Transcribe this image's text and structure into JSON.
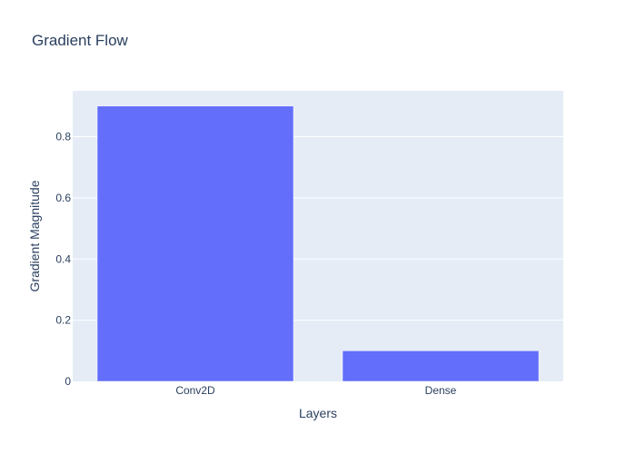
{
  "chart_data": {
    "type": "bar",
    "title": "Gradient Flow",
    "xlabel": "Layers",
    "ylabel": "Gradient Magnitude",
    "categories": [
      "Conv2D",
      "Dense"
    ],
    "values": [
      0.9,
      0.1
    ],
    "ylim": [
      0,
      0.95
    ],
    "yticks": [
      0,
      0.2,
      0.4,
      0.6,
      0.8
    ],
    "ytick_labels": [
      "0",
      "0.2",
      "0.4",
      "0.6",
      "0.8"
    ],
    "grid": true,
    "bar_color": "#636efa",
    "plot_bg": "#e5ecf6",
    "grid_color": "#ffffff",
    "text_color": "#2a3f5f"
  }
}
